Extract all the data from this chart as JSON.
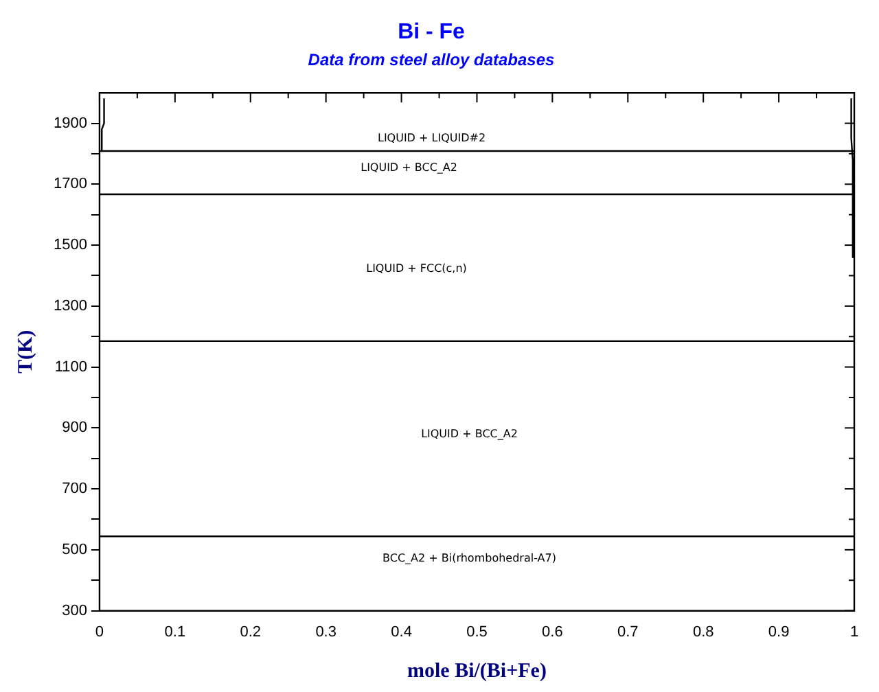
{
  "chart_data": {
    "type": "line",
    "title": "Bi - Fe",
    "subtitle": "Data from steel alloy databases",
    "xlabel": "mole Bi/(Bi+Fe)",
    "ylabel": "T(K)",
    "xlim": [
      0,
      1
    ],
    "ylim": [
      300,
      2000
    ],
    "xticks": [
      0,
      {
        "value": 0.05,
        "label": null
      },
      0.1,
      {
        "value": 0.15,
        "label": null
      },
      0.2,
      {
        "value": 0.25,
        "label": null
      },
      0.3,
      {
        "value": 0.35,
        "label": null
      },
      0.4,
      {
        "value": 0.45,
        "label": null
      },
      0.5,
      {
        "value": 0.55,
        "label": null
      },
      0.6,
      {
        "value": 0.65,
        "label": null
      },
      0.7,
      {
        "value": 0.75,
        "label": null
      },
      0.8,
      {
        "value": 0.85,
        "label": null
      },
      0.9,
      {
        "value": 0.95,
        "label": null
      },
      1
    ],
    "yticks": [
      300,
      {
        "value": 400,
        "label": null
      },
      500,
      {
        "value": 600,
        "label": null
      },
      700,
      {
        "value": 800,
        "label": null
      },
      900,
      {
        "value": 1000,
        "label": null
      },
      1100,
      {
        "value": 1200,
        "label": null
      },
      1300,
      {
        "value": 1400,
        "label": null
      },
      1500,
      {
        "value": 1600,
        "label": null
      },
      1700,
      {
        "value": 1800,
        "label": null
      },
      1900
    ],
    "grid": false,
    "legend": false,
    "marker": "none",
    "line_style": "solid",
    "series": [
      {
        "type": "line",
        "color": "#000000",
        "x": [
          0,
          1
        ],
        "values": [
          1809,
          1809
        ]
      },
      {
        "type": "line",
        "color": "#000000",
        "x": [
          0,
          1
        ],
        "values": [
          1667,
          1667
        ]
      },
      {
        "type": "line",
        "color": "#000000",
        "x": [
          0,
          1
        ],
        "values": [
          1185,
          1185
        ]
      },
      {
        "type": "line",
        "color": "#000000",
        "x": [
          0,
          1
        ],
        "values": [
          544,
          544
        ]
      },
      {
        "type": "line",
        "color": "#000000",
        "x": [
          0.006,
          0.006,
          0.003,
          0.003
        ],
        "values": [
          1980,
          1900,
          1880,
          1809
        ]
      },
      {
        "type": "line",
        "color": "#000000",
        "x": [
          0.996,
          0.996,
          0.998,
          0.998
        ],
        "values": [
          1980,
          1850,
          1780,
          1460
        ]
      }
    ],
    "annotations": [
      "LIQUID + LIQUID#2",
      "LIQUID + BCC_A2",
      "LIQUID + FCC(c,n)",
      "LIQUID + BCC_A2",
      "BCC_A2 + Bi(rhombohedral-A7)"
    ]
  }
}
